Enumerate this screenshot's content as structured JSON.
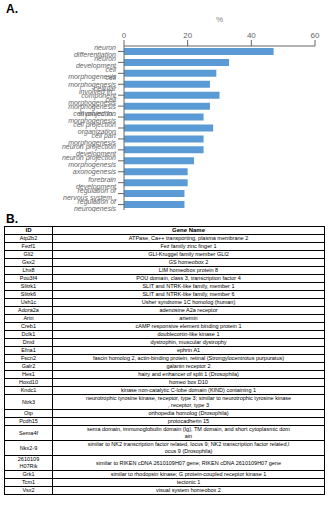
{
  "chart_data": {
    "type": "bar",
    "title": "A.",
    "orientation": "horizontal",
    "categories": [
      "neuron differentiation",
      "neuron development",
      "cell morphogenesis",
      "cell morphogenesis involved in..",
      "cellular component morphogenesis",
      "cell morphogenesis involved in..",
      "cell projection morphogenesis",
      "cell projection organization",
      "cell part morphogenesis",
      "neuron projection development",
      "neuron projection morphogenesis",
      "axonogenesis",
      "forebrain development",
      "regulation of nervous system..",
      "regulation of neurogenesis"
    ],
    "values": [
      47,
      33,
      29,
      27,
      30,
      27,
      25,
      28,
      25,
      25,
      22,
      20,
      20,
      19,
      19
    ],
    "color": "#5B9BD5",
    "xlabel": "%",
    "xlim": [
      0,
      60
    ],
    "xticks": [
      0,
      20,
      40,
      60
    ],
    "grid": false
  },
  "table": {
    "title": "B.",
    "headers": [
      "ID",
      "Gene Name"
    ],
    "rows": [
      [
        "Atp2b2",
        "ATPase, Ca++ transporting, plasma membrane 2"
      ],
      [
        "Fezf1",
        "Fez family zinc finger 1"
      ],
      [
        "Gli2",
        "GLI-Kruggel family member GLI2"
      ],
      [
        "Gsx2",
        "GS homeobox 2"
      ],
      [
        "Lhx8",
        "LIM homeobox protein 8"
      ],
      [
        "Pou3f4",
        "POU domain, class 3, transcription factor 4"
      ],
      [
        "Slitrk1",
        "SLIT and NTRK-like family, member 1"
      ],
      [
        "Slitrk6",
        "SLIT and NTRK-like family, member 6"
      ],
      [
        "Ush1c",
        "Usher syndrome 1C homolog (human)"
      ],
      [
        "Adora2a",
        "adenosine A2a receptor"
      ],
      [
        "Artn",
        "artemin"
      ],
      [
        "Creb1",
        "cAMP responsive element binding protein 1"
      ],
      [
        "Dclk1",
        "doublecortin-like kinase 1"
      ],
      [
        "Dmd",
        "dystrophin, muscular dystrophy"
      ],
      [
        "Efna1",
        "ephrin A1"
      ],
      [
        "Fscn2",
        "fascin homolog 2, actin-binding protein, retinal (Strongylocentrotus purpuratus)"
      ],
      [
        "Galr2",
        "galanin receptor 2"
      ],
      [
        "Hes1",
        "hairy and enhancer of split 1 (Drosophila)"
      ],
      [
        "Hoxd10",
        "homeo box D10"
      ],
      [
        "Kndc1",
        "kinase non-catalytic C-lobe domain (KIND) containing 1"
      ],
      [
        "Ntrk3",
        "neurotrophic tyrosine kinase, receptor, type 3; similar to neurotrophic tyrosine kinase\n, receptor, type 3"
      ],
      [
        "Otp",
        "orthopedia homolog (Drosophila)"
      ],
      [
        "Pcdh15",
        "protocadherin 15"
      ],
      [
        "Sema4f",
        "sema domain, immunoglobulin domain (Ig), TM domain, and short cytoplasmic dom\nain"
      ],
      [
        "Nkx2-9",
        "similar to NK2 transcription factor related, locus 9; NK2 transcription factor related,l\nocus 9 (Drosophila)"
      ],
      [
        "2610109\nH07Rik",
        "similar to RIKEN cDNA 2610109H07 gene; RIKEN cDNA 2610109H07 gene"
      ],
      [
        "Grk1",
        "similar to rhodopsin kinase; G protein-coupled receptor kinase 1"
      ],
      [
        "Tcm1",
        "tectonic 1"
      ],
      [
        "Vsx2",
        "visual system homeobox 2"
      ]
    ]
  }
}
